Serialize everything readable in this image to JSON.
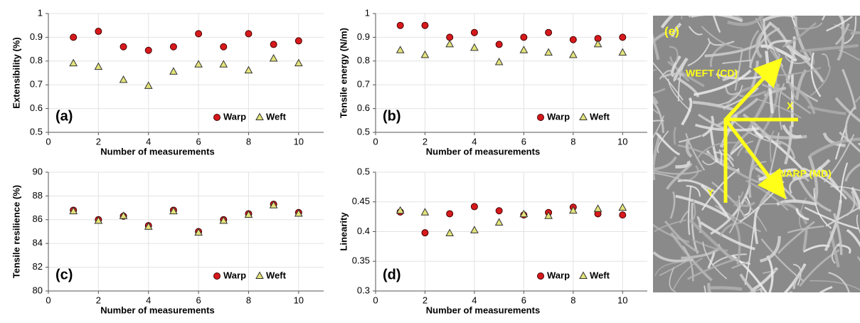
{
  "chart_data": [
    {
      "type": "scatter",
      "panel_label": "(a)",
      "xlabel": "Number of measurements",
      "ylabel": "Extensibility (%)",
      "x": [
        1,
        2,
        3,
        4,
        5,
        6,
        7,
        8,
        9,
        10
      ],
      "xlim": [
        0,
        11
      ],
      "xticks": [
        0,
        2,
        4,
        6,
        8,
        10
      ],
      "ylim": [
        0.5,
        1
      ],
      "yticks": [
        0.5,
        0.6,
        0.7,
        0.8,
        0.9,
        1
      ],
      "grid": true,
      "legend": "lower right",
      "series": [
        {
          "name": "Warp",
          "color": "#d7191c",
          "marker": "circle",
          "values": [
            0.9,
            0.925,
            0.86,
            0.845,
            0.86,
            0.915,
            0.86,
            0.915,
            0.87,
            0.885
          ]
        },
        {
          "name": "Weft",
          "color": "#e3e37a",
          "marker": "triangle",
          "values": [
            0.79,
            0.775,
            0.72,
            0.695,
            0.755,
            0.785,
            0.785,
            0.76,
            0.81,
            0.79
          ]
        }
      ]
    },
    {
      "type": "scatter",
      "panel_label": "(b)",
      "xlabel": "Number of measurements",
      "ylabel": "Tensile energy (N/m)",
      "x": [
        1,
        2,
        3,
        4,
        5,
        6,
        7,
        8,
        9,
        10
      ],
      "xlim": [
        0,
        11
      ],
      "xticks": [
        0,
        2,
        4,
        6,
        8,
        10
      ],
      "ylim": [
        0.5,
        1
      ],
      "yticks": [
        0.5,
        0.6,
        0.7,
        0.8,
        0.9,
        1
      ],
      "grid": true,
      "legend": "lower right",
      "series": [
        {
          "name": "Warp",
          "color": "#d7191c",
          "marker": "circle",
          "values": [
            0.95,
            0.95,
            0.9,
            0.92,
            0.87,
            0.9,
            0.92,
            0.89,
            0.895,
            0.9
          ]
        },
        {
          "name": "Weft",
          "color": "#e3e37a",
          "marker": "triangle",
          "values": [
            0.845,
            0.825,
            0.87,
            0.855,
            0.795,
            0.845,
            0.835,
            0.825,
            0.87,
            0.835
          ]
        }
      ]
    },
    {
      "type": "scatter",
      "panel_label": "(c)",
      "xlabel": "Number of measurements",
      "ylabel": "Tensile resilience (%)",
      "x": [
        1,
        2,
        3,
        4,
        5,
        6,
        7,
        8,
        9,
        10
      ],
      "xlim": [
        0,
        11
      ],
      "xticks": [
        0,
        2,
        4,
        6,
        8,
        10
      ],
      "ylim": [
        80,
        90
      ],
      "yticks": [
        80,
        82,
        84,
        86,
        88,
        90
      ],
      "grid": true,
      "legend": "lower right",
      "series": [
        {
          "name": "Warp",
          "color": "#d7191c",
          "marker": "circle",
          "values": [
            86.8,
            86.0,
            86.3,
            85.5,
            86.8,
            85.0,
            86.0,
            86.5,
            87.3,
            86.6
          ]
        },
        {
          "name": "Weft",
          "color": "#e3e37a",
          "marker": "triangle",
          "values": [
            86.7,
            85.9,
            86.3,
            85.4,
            86.7,
            84.9,
            85.9,
            86.4,
            87.2,
            86.5
          ]
        }
      ]
    },
    {
      "type": "scatter",
      "panel_label": "(d)",
      "xlabel": "Number of measurements",
      "ylabel": "Linearity",
      "x": [
        1,
        2,
        3,
        4,
        5,
        6,
        7,
        8,
        9,
        10
      ],
      "xlim": [
        0,
        11
      ],
      "xticks": [
        0,
        2,
        4,
        6,
        8,
        10
      ],
      "ylim": [
        0.3,
        0.5
      ],
      "yticks": [
        0.3,
        0.35,
        0.4,
        0.45,
        0.5
      ],
      "grid": true,
      "legend": "lower right",
      "series": [
        {
          "name": "Warp",
          "color": "#d7191c",
          "marker": "circle",
          "values": [
            0.433,
            0.398,
            0.43,
            0.442,
            0.435,
            0.428,
            0.432,
            0.441,
            0.43,
            0.428
          ]
        },
        {
          "name": "Weft",
          "color": "#e3e37a",
          "marker": "triangle",
          "values": [
            0.435,
            0.432,
            0.397,
            0.402,
            0.415,
            0.429,
            0.426,
            0.435,
            0.438,
            0.44
          ]
        }
      ]
    }
  ],
  "image_panel": {
    "label": "(e)",
    "annotations": [
      "WEFT (CD)",
      "X",
      "WARP (MD)",
      "Y"
    ]
  }
}
